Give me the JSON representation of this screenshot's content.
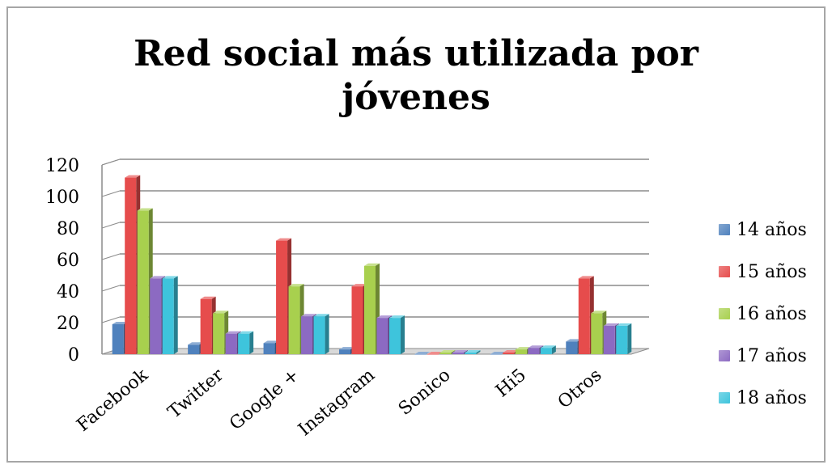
{
  "chart_data": {
    "type": "bar",
    "title": "Red social más utilizada por jóvenes",
    "title_lines": [
      "Red social más utilizada por",
      "jóvenes"
    ],
    "categories": [
      "Facebook",
      "Twitter",
      "Google +",
      "Instagram",
      "Sonico",
      "Hi5",
      "Otros"
    ],
    "series": [
      {
        "name": "14 años",
        "color": "#4f81bd",
        "values": [
          19,
          6,
          7,
          3,
          0,
          0,
          8
        ]
      },
      {
        "name": "15 años",
        "color": "#e64c4c",
        "values": [
          112,
          35,
          72,
          43,
          0,
          1,
          48
        ]
      },
      {
        "name": "16 años",
        "color": "#a8d04e",
        "values": [
          91,
          26,
          43,
          56,
          1,
          3,
          26
        ]
      },
      {
        "name": "17 años",
        "color": "#8c6ac2",
        "values": [
          48,
          13,
          24,
          23,
          1,
          4,
          18
        ]
      },
      {
        "name": "18 años",
        "color": "#3ec4dc",
        "values": [
          48,
          13,
          24,
          23,
          1,
          4,
          18
        ]
      }
    ],
    "ylim": [
      0,
      120
    ],
    "yticks": [
      "120",
      "100",
      "80",
      "60",
      "40",
      "20",
      "0"
    ],
    "grid": true,
    "legend_position": "right"
  }
}
